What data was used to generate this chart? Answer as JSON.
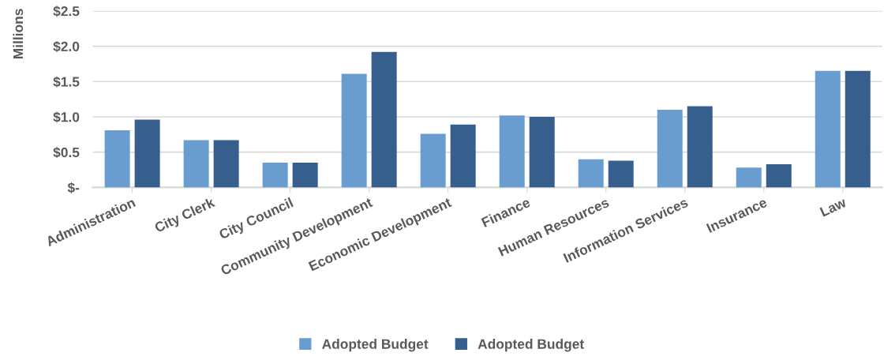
{
  "chart_data": {
    "type": "bar",
    "ylabel": "Millions",
    "categories": [
      "Administration",
      "City Clerk",
      "City Council",
      "Community Development",
      "Economic Development",
      "Finance",
      "Human Resources",
      "Information Services",
      "Insurance",
      "Law"
    ],
    "series": [
      {
        "name": "Adopted Budget",
        "color": "#6a9dcf",
        "values": [
          0.81,
          0.67,
          0.35,
          1.61,
          0.76,
          1.02,
          0.4,
          1.1,
          0.28,
          1.65
        ]
      },
      {
        "name": "Adopted Budget",
        "color": "#365f8e",
        "values": [
          0.96,
          0.67,
          0.35,
          1.92,
          0.89,
          1.0,
          0.38,
          1.15,
          0.33,
          1.65
        ]
      }
    ],
    "ylim": [
      0,
      2.5
    ],
    "yticks": [
      {
        "value": 0,
        "label": "$-"
      },
      {
        "value": 0.5,
        "label": "$0.5"
      },
      {
        "value": 1.0,
        "label": "$1.0"
      },
      {
        "value": 1.5,
        "label": "$1.5"
      },
      {
        "value": 2.0,
        "label": "$2.0"
      },
      {
        "value": 2.5,
        "label": "$2.5"
      }
    ],
    "grid": "y",
    "legend": "bottom"
  }
}
